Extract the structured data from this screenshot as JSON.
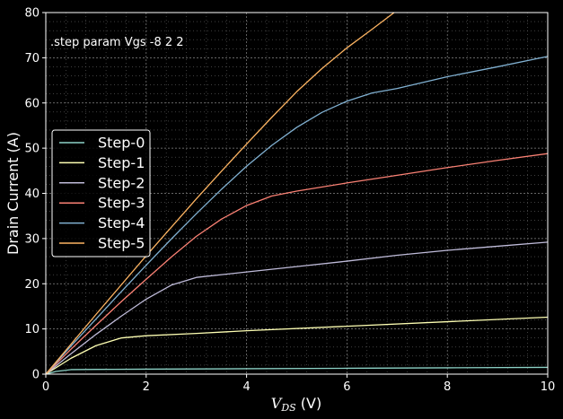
{
  "chart_data": {
    "type": "line",
    "annotation": ".step param Vgs -8 2 2",
    "xlabel_symbol": "V",
    "xlabel_subscript": "DS",
    "xlabel_unit": " (V)",
    "ylabel": "Drain Current (A)",
    "xlim": [
      0,
      10
    ],
    "ylim": [
      0,
      80
    ],
    "xticks": [
      0,
      2,
      4,
      6,
      8,
      10
    ],
    "yticks": [
      0,
      10,
      20,
      30,
      40,
      50,
      60,
      70,
      80
    ],
    "grid": true,
    "legend_placement": "center-left",
    "colors": {
      "background": "#000000",
      "axes": "#ffffff",
      "grid": "#666666"
    },
    "series": [
      {
        "name": "Step-0",
        "color": "#8dd3c7",
        "x": [
          0,
          0.2,
          0.5,
          1,
          2,
          4,
          6,
          8,
          10
        ],
        "y": [
          0,
          0.6,
          1.0,
          1.05,
          1.1,
          1.2,
          1.3,
          1.4,
          1.5
        ]
      },
      {
        "name": "Step-1",
        "color": "#feffb3",
        "x": [
          0,
          0.5,
          1,
          1.5,
          2,
          3,
          4,
          6,
          8,
          10
        ],
        "y": [
          0,
          3.5,
          6.3,
          8.0,
          8.5,
          9.0,
          9.6,
          10.6,
          11.6,
          12.6
        ]
      },
      {
        "name": "Step-2",
        "color": "#bfbbd9",
        "x": [
          0,
          0.5,
          1,
          1.5,
          2,
          2.5,
          3,
          4,
          5,
          6,
          7,
          8,
          9,
          10
        ],
        "y": [
          0,
          4.5,
          8.8,
          12.8,
          16.6,
          19.7,
          21.4,
          22.6,
          23.8,
          25.0,
          26.3,
          27.4,
          28.3,
          29.2
        ]
      },
      {
        "name": "Step-3",
        "color": "#fa8174",
        "x": [
          0,
          0.5,
          1,
          1.5,
          2,
          2.5,
          3,
          3.5,
          4,
          4.5,
          5,
          6,
          7,
          8,
          9,
          10
        ],
        "y": [
          0,
          5.5,
          10.8,
          16.0,
          21.0,
          25.9,
          30.5,
          34.3,
          37.3,
          39.4,
          40.5,
          42.3,
          44.0,
          45.7,
          47.3,
          48.8
        ]
      },
      {
        "name": "Step-4",
        "color": "#81b1d2",
        "x": [
          0,
          0.5,
          1,
          1.5,
          2,
          2.5,
          3,
          3.5,
          4,
          4.5,
          5,
          5.5,
          6,
          6.5,
          7,
          8,
          9,
          10
        ],
        "y": [
          0,
          6.2,
          12.2,
          18.2,
          24.1,
          29.9,
          35.5,
          40.9,
          46.0,
          50.6,
          54.6,
          57.9,
          60.4,
          62.2,
          63.2,
          65.8,
          68.0,
          70.3
        ]
      },
      {
        "name": "Step-5",
        "color": "#fdb462",
        "x": [
          0,
          0.5,
          1,
          1.5,
          2,
          2.5,
          3,
          3.5,
          4,
          4.5,
          5,
          5.5,
          6,
          6.5,
          6.94
        ],
        "y": [
          0,
          6.6,
          13.2,
          19.7,
          26.2,
          32.5,
          38.8,
          44.9,
          50.9,
          56.8,
          62.5,
          67.6,
          72.2,
          76.3,
          80.0
        ]
      }
    ]
  }
}
